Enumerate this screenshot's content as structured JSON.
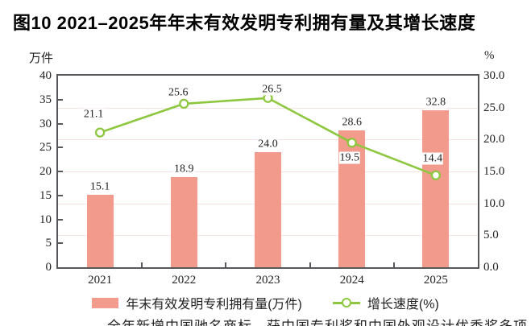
{
  "title": "图10 2021–2025年年末有效发明专利拥有量及其增长速度",
  "clipped_text": "　　全年新增中国驰名商标，获中国专利奖和中国外观设计优秀奖多项",
  "colors": {
    "bar": "#F29B8C",
    "line": "#8DC73F",
    "axis_frame": "#57585B",
    "gridline": "#F6E2E0",
    "text": "#222222"
  },
  "chart_data": {
    "type": "combo-bar-line",
    "categories": [
      "2021",
      "2022",
      "2023",
      "2024",
      "2025"
    ],
    "series": [
      {
        "name": "年末有效发明专利拥有量(万件)",
        "type": "bar",
        "axis": "left",
        "values": [
          15.1,
          18.9,
          24.0,
          28.6,
          32.8
        ],
        "labels": [
          "15.1",
          "18.9",
          "24.0",
          "28.6",
          "32.8"
        ],
        "color": "#F29B8C"
      },
      {
        "name": "增长速度(%)",
        "type": "line",
        "axis": "right",
        "values": [
          21.1,
          25.6,
          26.5,
          19.5,
          14.4
        ],
        "labels": [
          "21.1",
          "25.6",
          "26.5",
          "19.5",
          "14.4"
        ],
        "color": "#8DC73F",
        "marker": "open-circle"
      }
    ],
    "left_axis": {
      "unit": "万件",
      "min": 0,
      "max": 40,
      "step": 5,
      "ticks": [
        "40",
        "35",
        "30",
        "25",
        "20",
        "15",
        "10",
        "5",
        "0"
      ]
    },
    "right_axis": {
      "unit": "%",
      "min": 0,
      "max": 30,
      "step": 5,
      "ticks": [
        "30.0",
        "25.0",
        "20.0",
        "15.0",
        "10.0",
        "5.0",
        "0.0"
      ]
    },
    "grid": {
      "horizontal": true,
      "aligned_to": "right_axis"
    },
    "legend_position": "bottom"
  }
}
